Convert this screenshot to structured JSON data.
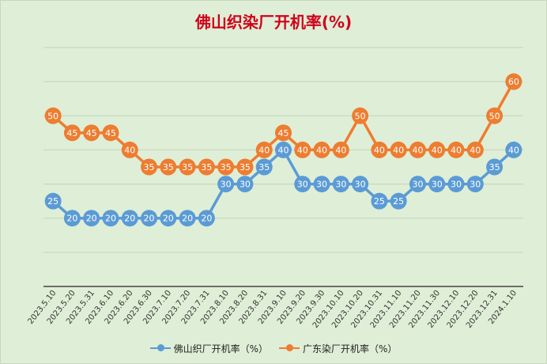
{
  "chart_data": {
    "type": "line",
    "title": "佛山织染厂开机率(%)",
    "categories": [
      "2023.5.10",
      "2023.5.20",
      "2023.5.31",
      "2023.6.10",
      "2023.6.20",
      "2023.6.30",
      "2023.7.10",
      "2023.7.20",
      "2023.7.31",
      "2023.8.10",
      "2023.8.20",
      "2023.8.31",
      "2023.9.10",
      "2023.9.20",
      "2023.9.30",
      "2023.10.10",
      "2023.10.20",
      "2023.10.31",
      "2023.11.10",
      "2023.11.20",
      "2023.11.30",
      "2023.12.10",
      "2023.12.20",
      "2023.12.31",
      "2024.1.10"
    ],
    "series": [
      {
        "name": "佛山织厂开机率（%）",
        "color": "#5b9bd5",
        "values": [
          25,
          20,
          20,
          20,
          20,
          20,
          20,
          20,
          20,
          30,
          30,
          35,
          40,
          30,
          30,
          30,
          30,
          25,
          25,
          30,
          30,
          30,
          30,
          35,
          40
        ]
      },
      {
        "name": "广东染厂开机率（%）",
        "color": "#ed7d31",
        "values": [
          50,
          45,
          45,
          45,
          40,
          35,
          35,
          35,
          35,
          35,
          35,
          40,
          45,
          40,
          40,
          40,
          50,
          40,
          40,
          40,
          40,
          40,
          40,
          50,
          60
        ]
      }
    ],
    "ylim": [
      0,
      70
    ],
    "grid": true,
    "data_labels": true,
    "legend_position": "bottom"
  }
}
